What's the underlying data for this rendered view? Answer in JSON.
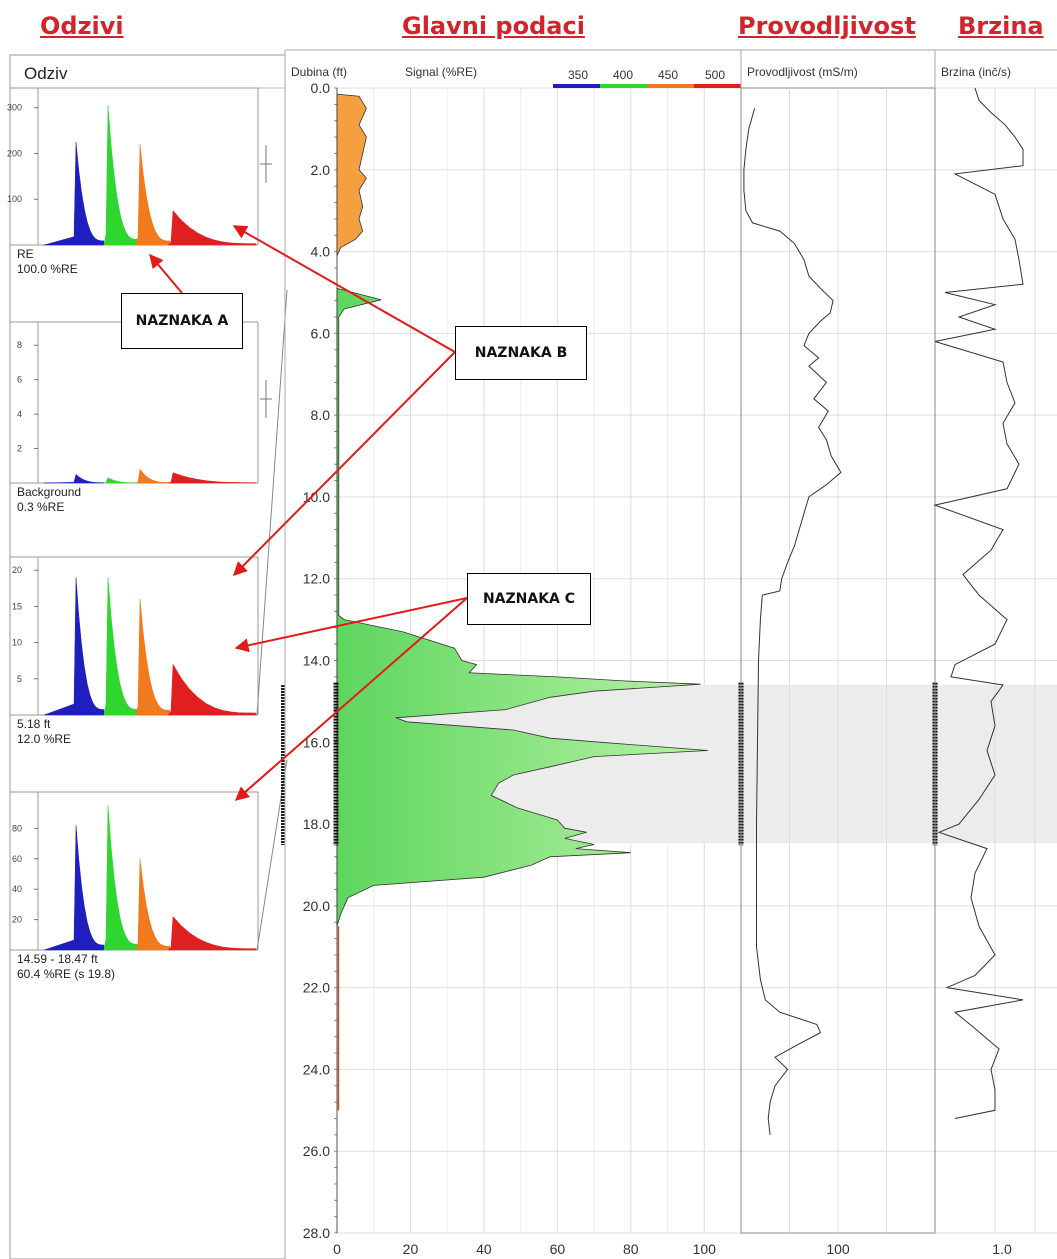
{
  "headers": {
    "responses": "Odzivi",
    "main": "Glavni podaci",
    "conductivity": "Provodljivost",
    "speed": "Brzina"
  },
  "callouts": {
    "a": "NAZNAKA A",
    "b": "NAZNAKA B",
    "c": "NAZNAKA C"
  },
  "colors": {
    "accent_red": "#d4232b",
    "band_350": "#1f1fbf",
    "band_400": "#2fd62f",
    "band_450": "#f07a1e",
    "band_500": "#e02020",
    "signal_fill_green": "#8ee68a",
    "signal_fill_orange": "#f4a040",
    "highlight_band": "#ececec"
  },
  "chart_data": [
    {
      "type": "area",
      "name": "responses-panel",
      "title": "Odziv",
      "band_colors": [
        "#1f1fbf",
        "#2fd62f",
        "#f07a1e",
        "#e02020"
      ],
      "panels": [
        {
          "yticks": [
            100,
            200,
            300
          ],
          "ymax": 330,
          "peaks": [
            225,
            305,
            220,
            75
          ],
          "caption1": "RE",
          "caption2": "100.0 %RE"
        },
        {
          "yticks": [
            2,
            4,
            6,
            8
          ],
          "ymax": 9,
          "peaks": [
            0.5,
            0.3,
            0.8,
            0.6
          ],
          "caption1": "Background",
          "caption2": "0.3 %RE"
        },
        {
          "yticks": [
            5,
            10,
            15,
            20
          ],
          "ymax": 21,
          "peaks": [
            19,
            19,
            16,
            7
          ],
          "caption1": "5.18 ft",
          "caption2": "12.0 %RE"
        },
        {
          "yticks": [
            20,
            40,
            60,
            80
          ],
          "ymax": 100,
          "peaks": [
            82,
            95,
            60,
            22
          ],
          "caption1": "14.59 - 18.47 ft",
          "caption2": "60.4 %RE (s 19.8)"
        }
      ]
    },
    {
      "type": "area",
      "name": "main-signal",
      "ylabel": "Dubina (ft)",
      "xlabel": "Signal (%RE)",
      "xlim": [
        0,
        110
      ],
      "ylim": [
        0,
        28
      ],
      "xticks": [
        0,
        20,
        40,
        60,
        80,
        100
      ],
      "yticks": [
        "0.0",
        "2.0",
        "4.0",
        "6.0",
        "8.0",
        "10.0",
        "12.0",
        "14.0",
        "16.0",
        "18.0",
        "20.0",
        "22.0",
        "24.0",
        "26.0",
        "28.0"
      ],
      "legend": [
        "350",
        "400",
        "450",
        "500"
      ],
      "highlight_depth": [
        14.59,
        18.47
      ],
      "orange_profile": [
        [
          0.15,
          0
        ],
        [
          0.2,
          6
        ],
        [
          0.5,
          8
        ],
        [
          0.9,
          6
        ],
        [
          1.2,
          8
        ],
        [
          1.6,
          7
        ],
        [
          2.0,
          6
        ],
        [
          2.2,
          8
        ],
        [
          2.5,
          6
        ],
        [
          2.9,
          7
        ],
        [
          3.2,
          6
        ],
        [
          3.5,
          7
        ],
        [
          3.7,
          5
        ],
        [
          3.9,
          1
        ],
        [
          4.1,
          0
        ]
      ],
      "green_profile": [
        [
          4.9,
          0
        ],
        [
          5.18,
          12
        ],
        [
          5.4,
          2
        ],
        [
          5.6,
          0.5
        ],
        [
          12.9,
          0.5
        ],
        [
          13.0,
          2
        ],
        [
          13.3,
          18
        ],
        [
          13.7,
          32
        ],
        [
          14.0,
          34
        ],
        [
          14.1,
          38
        ],
        [
          14.3,
          36
        ],
        [
          14.4,
          60
        ],
        [
          14.5,
          78
        ],
        [
          14.58,
          99
        ],
        [
          14.75,
          70
        ],
        [
          14.9,
          58
        ],
        [
          15.2,
          46
        ],
        [
          15.4,
          16
        ],
        [
          15.5,
          19
        ],
        [
          15.7,
          48
        ],
        [
          15.9,
          58
        ],
        [
          16.0,
          72
        ],
        [
          16.2,
          101
        ],
        [
          16.35,
          70
        ],
        [
          16.6,
          58
        ],
        [
          16.8,
          48
        ],
        [
          17.0,
          44
        ],
        [
          17.3,
          42
        ],
        [
          17.6,
          49
        ],
        [
          17.9,
          60
        ],
        [
          18.1,
          62
        ],
        [
          18.2,
          68
        ],
        [
          18.35,
          62
        ],
        [
          18.5,
          70
        ],
        [
          18.6,
          65
        ],
        [
          18.7,
          80
        ],
        [
          18.8,
          58
        ],
        [
          19.0,
          53
        ],
        [
          19.3,
          40
        ],
        [
          19.5,
          10
        ],
        [
          19.8,
          3
        ],
        [
          20.2,
          1
        ],
        [
          20.5,
          0
        ]
      ],
      "trace_profile": [
        [
          20.5,
          0.4
        ],
        [
          25.0,
          0.4
        ]
      ]
    },
    {
      "type": "line",
      "name": "conductivity",
      "xlabel": "Provodljivost (mS/m)",
      "xlim": [
        0,
        200
      ],
      "xticks": [
        100
      ],
      "series": [
        {
          "points": [
            [
              0.5,
              14
            ],
            [
              1.0,
              8
            ],
            [
              1.5,
              5
            ],
            [
              2.0,
              3
            ],
            [
              2.5,
              3
            ],
            [
              3.0,
              5
            ],
            [
              3.3,
              12
            ],
            [
              3.5,
              40
            ],
            [
              3.8,
              55
            ],
            [
              4.2,
              65
            ],
            [
              4.6,
              70
            ],
            [
              4.9,
              82
            ],
            [
              5.2,
              95
            ],
            [
              5.5,
              92
            ],
            [
              5.7,
              82
            ],
            [
              6.0,
              70
            ],
            [
              6.3,
              65
            ],
            [
              6.6,
              80
            ],
            [
              6.8,
              70
            ],
            [
              7.2,
              88
            ],
            [
              7.6,
              75
            ],
            [
              7.9,
              90
            ],
            [
              8.3,
              80
            ],
            [
              8.6,
              88
            ],
            [
              9.0,
              93
            ],
            [
              9.4,
              103
            ],
            [
              9.7,
              88
            ],
            [
              10.0,
              70
            ],
            [
              10.4,
              65
            ],
            [
              10.8,
              60
            ],
            [
              11.2,
              55
            ],
            [
              11.6,
              48
            ],
            [
              12.0,
              42
            ],
            [
              12.3,
              40
            ],
            [
              12.4,
              22
            ],
            [
              13.0,
              20
            ],
            [
              14.0,
              18
            ],
            [
              16.0,
              17
            ],
            [
              18.0,
              16
            ],
            [
              20.0,
              16
            ],
            [
              21.0,
              16
            ],
            [
              21.8,
              20
            ],
            [
              22.3,
              25
            ],
            [
              22.6,
              40
            ],
            [
              22.9,
              78
            ],
            [
              23.1,
              82
            ],
            [
              23.4,
              58
            ],
            [
              23.7,
              35
            ],
            [
              24.0,
              48
            ],
            [
              24.4,
              35
            ],
            [
              24.8,
              30
            ],
            [
              25.2,
              28
            ],
            [
              25.6,
              30
            ]
          ]
        }
      ]
    },
    {
      "type": "line",
      "name": "speed",
      "xlabel": "Brzina (inč/s)",
      "xticks": [
        "1.0"
      ],
      "series": [
        {
          "points": [
            [
              0.0,
              20
            ],
            [
              0.3,
              22
            ],
            [
              0.6,
              28
            ],
            [
              0.9,
              35
            ],
            [
              1.2,
              40
            ],
            [
              1.5,
              44
            ],
            [
              1.9,
              44
            ],
            [
              2.1,
              10
            ],
            [
              2.6,
              30
            ],
            [
              3.2,
              34
            ],
            [
              3.7,
              40
            ],
            [
              4.2,
              42
            ],
            [
              4.8,
              44
            ],
            [
              5.0,
              5
            ],
            [
              5.3,
              30
            ],
            [
              5.6,
              12
            ],
            [
              5.9,
              30
            ],
            [
              6.2,
              0
            ],
            [
              6.7,
              34
            ],
            [
              7.2,
              36
            ],
            [
              7.7,
              40
            ],
            [
              8.2,
              34
            ],
            [
              8.7,
              36
            ],
            [
              9.2,
              42
            ],
            [
              9.8,
              36
            ],
            [
              10.2,
              0
            ],
            [
              10.8,
              34
            ],
            [
              11.3,
              28
            ],
            [
              11.9,
              14
            ],
            [
              12.4,
              22
            ],
            [
              13.0,
              36
            ],
            [
              13.6,
              30
            ],
            [
              14.1,
              10
            ],
            [
              14.4,
              8
            ],
            [
              14.6,
              34
            ],
            [
              15.0,
              28
            ],
            [
              15.6,
              30
            ],
            [
              16.2,
              26
            ],
            [
              16.8,
              30
            ],
            [
              17.4,
              22
            ],
            [
              18.0,
              12
            ],
            [
              18.2,
              2
            ],
            [
              18.6,
              26
            ],
            [
              19.2,
              20
            ],
            [
              19.8,
              18
            ],
            [
              20.5,
              22
            ],
            [
              21.2,
              30
            ],
            [
              21.7,
              20
            ],
            [
              22.0,
              6
            ],
            [
              22.3,
              44
            ],
            [
              22.6,
              10
            ],
            [
              23.0,
              20
            ],
            [
              23.5,
              32
            ],
            [
              24.0,
              28
            ],
            [
              24.5,
              30
            ],
            [
              25.0,
              30
            ],
            [
              25.2,
              10
            ]
          ]
        }
      ]
    }
  ]
}
